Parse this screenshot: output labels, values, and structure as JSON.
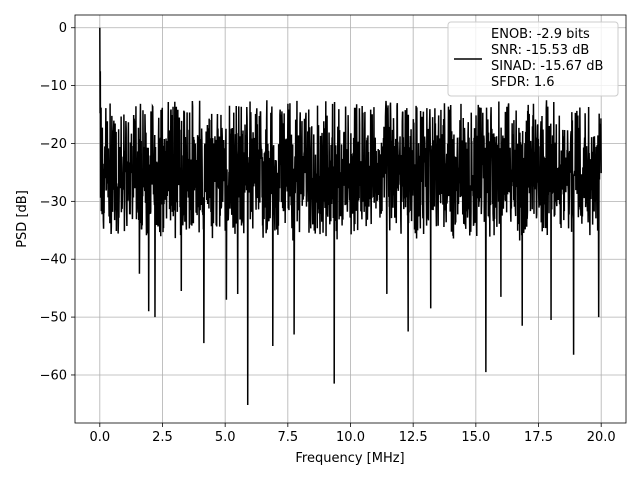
{
  "chart_data": {
    "type": "line",
    "title": "",
    "xlabel": "Frequency [MHz]",
    "ylabel": "PSD [dB]",
    "xlim": [
      -0.99,
      20.99
    ],
    "ylim": [
      -68.3,
      2.2
    ],
    "xticks": [
      0.0,
      2.5,
      5.0,
      7.5,
      10.0,
      12.5,
      15.0,
      17.5,
      20.0
    ],
    "xtick_labels": [
      "0.0",
      "2.5",
      "5.0",
      "7.5",
      "10.0",
      "12.5",
      "15.0",
      "17.5",
      "20.0"
    ],
    "yticks": [
      0,
      -10,
      -20,
      -30,
      -40,
      -50,
      -60
    ],
    "ytick_labels": [
      "0",
      "−10",
      "−20",
      "−30",
      "−40",
      "−50",
      "−60"
    ],
    "grid": true,
    "legend_position": "top-right",
    "series": [
      {
        "name": "ENOB: -2.9 bits\nSNR: -15.53 dB\nSINAD: -15.67 dB\nSFDR: 1.6",
        "color": "#000000",
        "x_range": [
          0.0,
          20.0
        ],
        "num_points": 2000,
        "noise_floor_db": -25,
        "noise_band_db": [
          -36,
          -12.5
        ],
        "peak": {
          "x": 0.0,
          "y": 0.0
        },
        "low_freq_rolloff": [
          {
            "x": 0.0,
            "y": 0.0
          },
          {
            "x": 0.02,
            "y": -8.0
          },
          {
            "x": 0.05,
            "y": -13.0
          },
          {
            "x": 0.1,
            "y": -17.0
          },
          {
            "x": 0.2,
            "y": -20.0
          }
        ],
        "notable_dips": [
          {
            "x": 1.58,
            "y": -42.5
          },
          {
            "x": 1.95,
            "y": -49.0
          },
          {
            "x": 2.2,
            "y": -50.0
          },
          {
            "x": 3.25,
            "y": -45.5
          },
          {
            "x": 4.15,
            "y": -54.5
          },
          {
            "x": 5.05,
            "y": -47.0
          },
          {
            "x": 5.5,
            "y": -46.0
          },
          {
            "x": 5.9,
            "y": -65.2
          },
          {
            "x": 6.9,
            "y": -55.0
          },
          {
            "x": 7.75,
            "y": -53.0
          },
          {
            "x": 9.35,
            "y": -61.5
          },
          {
            "x": 11.45,
            "y": -46.0
          },
          {
            "x": 12.3,
            "y": -52.5
          },
          {
            "x": 13.2,
            "y": -48.5
          },
          {
            "x": 15.4,
            "y": -59.5
          },
          {
            "x": 16.0,
            "y": -46.5
          },
          {
            "x": 16.85,
            "y": -51.5
          },
          {
            "x": 18.0,
            "y": -50.5
          },
          {
            "x": 18.9,
            "y": -56.5
          },
          {
            "x": 19.9,
            "y": -50.0
          }
        ]
      }
    ]
  }
}
